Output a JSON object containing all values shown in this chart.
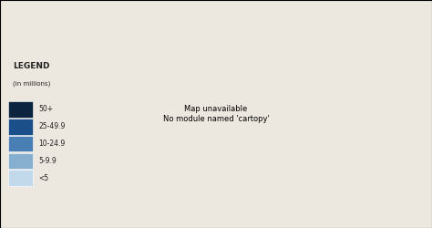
{
  "background_color": "#ede8df",
  "ocean_color": "#ede8df",
  "missing_color": "#a0a0a0",
  "border_color": "#ffffff",
  "border_linewidth": 0.3,
  "legend_labels": [
    "50+",
    "25-49.9",
    "10-24.9",
    "5-9.9",
    "<5"
  ],
  "legend_colors": [
    "#0c2340",
    "#1a4f8a",
    "#4a7fb5",
    "#85aecf",
    "#c2d9ec"
  ],
  "figsize": [
    4.74,
    2.5
  ],
  "dpi": 100,
  "map_extent": [
    -180,
    180,
    -60,
    85
  ]
}
